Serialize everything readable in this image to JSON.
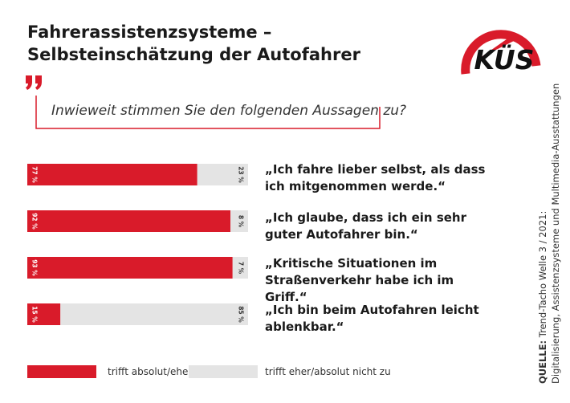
{
  "header": {
    "title_line1": "Fahrerassistenzsysteme –",
    "title_line2": "Selbsteinschätzung der Autofahrer",
    "logo_text": "KÜS"
  },
  "question": "Inwieweit stimmen Sie den folgenden Aussagen zu?",
  "colors": {
    "agree": "#d91b2a",
    "disagree": "#e4e4e4",
    "accent": "#d91b2a"
  },
  "chart_data": {
    "type": "bar",
    "orientation": "horizontal",
    "stacked": true,
    "categories": [
      "„Ich fahre lieber selbst, als dass ich mitgenommen werde.“",
      "„Ich glaube, dass ich ein sehr guter Autofahrer bin.“",
      "„Kritische Situationen im Straßenverkehr habe ich im Griff.“",
      "„Ich bin beim Autofahren leicht ablenkbar.“"
    ],
    "category_lines": [
      [
        "„Ich fahre lieber selbst, als dass",
        "ich mitgenommen werde.“"
      ],
      [
        "„Ich glaube, dass ich ein sehr",
        "guter Autofahrer bin.“"
      ],
      [
        "„Kritische Situationen im",
        "Straßenverkehr habe ich im Griff.“"
      ],
      [
        "„Ich bin beim Autofahren leicht",
        "ablenkbar.“"
      ]
    ],
    "series": [
      {
        "name": "trifft absolut/eher zu",
        "values": [
          77,
          92,
          93,
          15
        ]
      },
      {
        "name": "trifft eher/absolut nicht zu",
        "values": [
          23,
          8,
          7,
          85
        ]
      }
    ],
    "value_labels": [
      [
        "77 %",
        "92 %",
        "93 %",
        "15 %"
      ],
      [
        "23 %",
        "8 %",
        "7 %",
        "85 %"
      ]
    ],
    "xlim": [
      0,
      100
    ],
    "grid": false,
    "legend_position": "bottom"
  },
  "legend": {
    "agree_label": "trifft absolut/eher zu",
    "disagree_label": "trifft eher/absolut nicht zu"
  },
  "source": {
    "label": "QUELLE:",
    "line1": "Trend-Tacho Welle 3 / 2021:",
    "line2": "Digitalisierung, Assistenzsysteme und Multimedia-Ausstattungen"
  }
}
